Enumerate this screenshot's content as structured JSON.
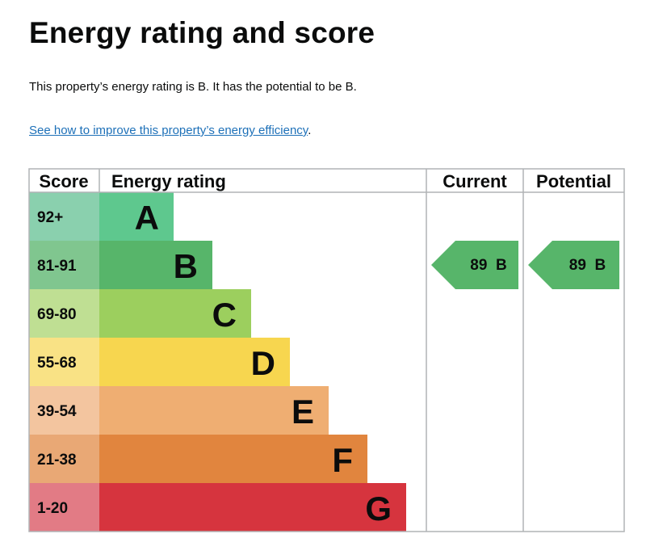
{
  "title": "Energy rating and score",
  "summary": "This property’s energy rating is B. It has the potential to be B.",
  "link_text": "See how to improve this property’s energy efficiency",
  "link_suffix": ".",
  "chart_data": {
    "type": "bar",
    "headers": {
      "score": "Score",
      "rating": "Energy rating",
      "current": "Current",
      "potential": "Potential"
    },
    "bands": [
      {
        "letter": "A",
        "range": "92+",
        "color": "#5ec88e",
        "range_color": "#8ad0ae"
      },
      {
        "letter": "B",
        "range": "81-91",
        "color": "#57b56a",
        "range_color": "#80c68f"
      },
      {
        "letter": "C",
        "range": "69-80",
        "color": "#9ccf5e",
        "range_color": "#bfdf93"
      },
      {
        "letter": "D",
        "range": "55-68",
        "color": "#f7d64f",
        "range_color": "#f9e285"
      },
      {
        "letter": "E",
        "range": "39-54",
        "color": "#efae72",
        "range_color": "#f3c59f"
      },
      {
        "letter": "F",
        "range": "21-38",
        "color": "#e1853e",
        "range_color": "#e9a875"
      },
      {
        "letter": "G",
        "range": "1-20",
        "color": "#d6343e",
        "range_color": "#e27b85"
      }
    ],
    "current": {
      "score": 89,
      "band": "B",
      "label": "89  B",
      "color": "#57b56a"
    },
    "potential": {
      "score": 89,
      "band": "B",
      "label": "89  B",
      "color": "#57b56a"
    }
  }
}
